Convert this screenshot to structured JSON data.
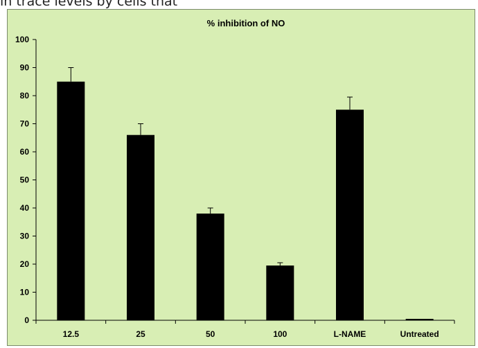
{
  "page": {
    "top_text": "in trace levels by cells that"
  },
  "colors": {
    "background": "#d8eeb4",
    "bar": "#000000",
    "axis": "#000000"
  },
  "chart_data": {
    "type": "bar",
    "title": "% inhibition of NO",
    "xlabel": "",
    "ylabel": "",
    "categories": [
      "12.5",
      "25",
      "50",
      "100",
      "L-NAME",
      "Untreated"
    ],
    "values": [
      85,
      66,
      38,
      19.5,
      75,
      0.5
    ],
    "errors": [
      5,
      4,
      2,
      1,
      4.5,
      0
    ],
    "ylim": [
      0,
      100
    ],
    "yticks": [
      0,
      10,
      20,
      30,
      40,
      50,
      60,
      70,
      80,
      90,
      100
    ],
    "grid": false,
    "legend": "none"
  }
}
